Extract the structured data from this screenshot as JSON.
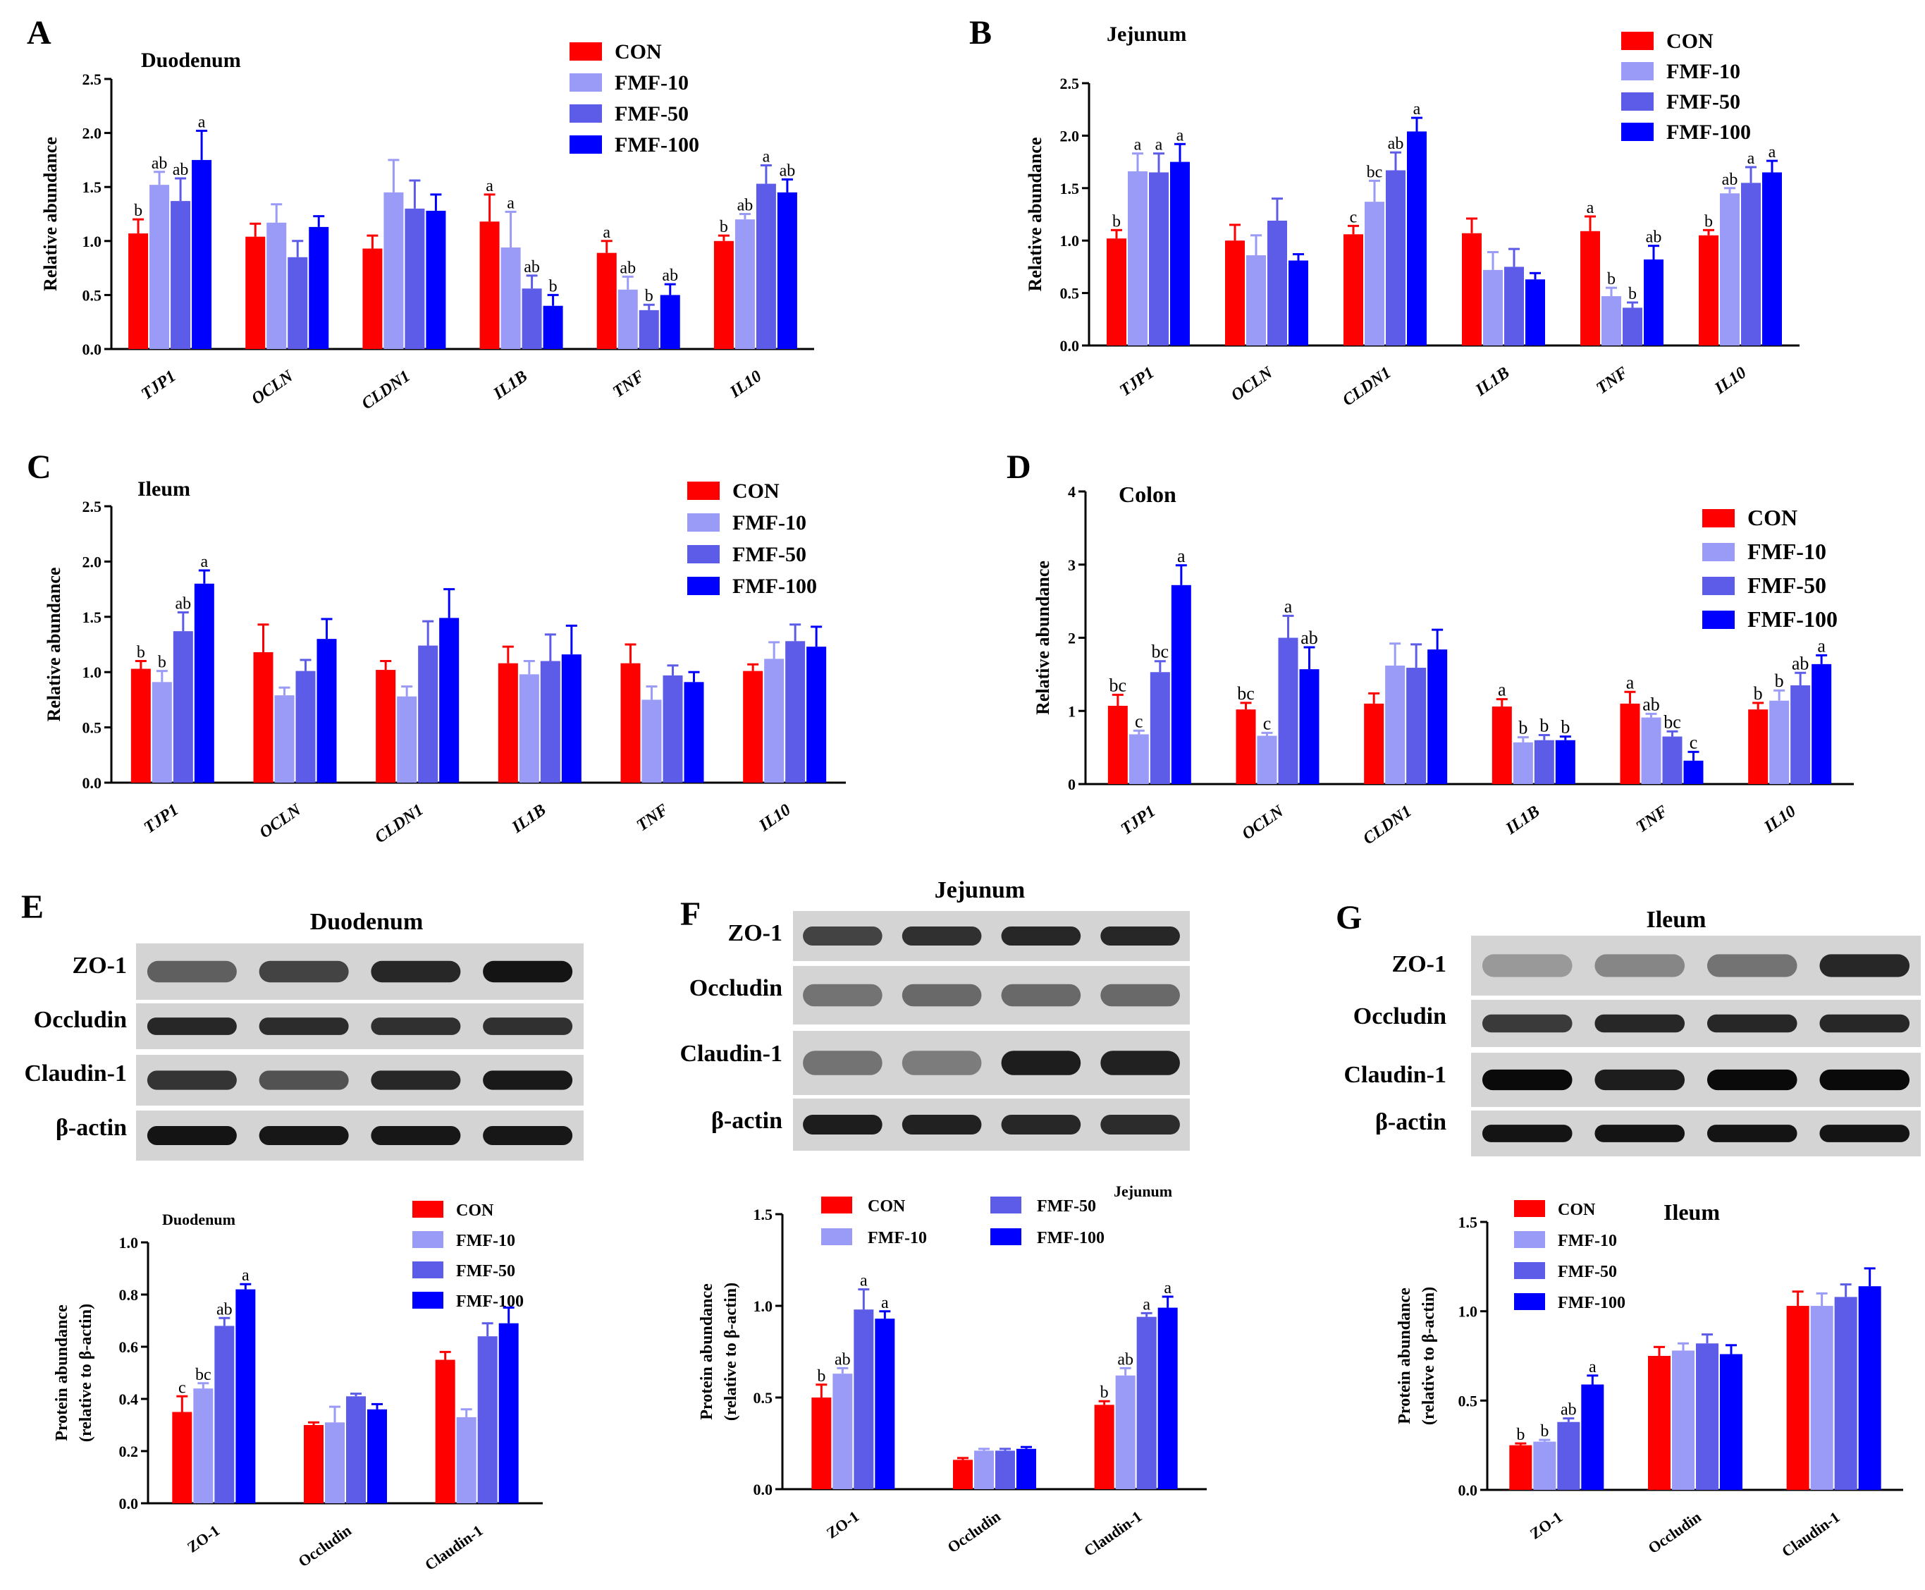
{
  "colors": {
    "CON": "#ff0000",
    "FMF-10": "#9a9af7",
    "FMF-50": "#5c5ce8",
    "FMF-100": "#0000ff"
  },
  "legend": [
    "CON",
    "FMF-10",
    "FMF-50",
    "FMF-100"
  ],
  "chart_data": [
    {
      "panel": "A",
      "title": "Duodenum",
      "type": "bar",
      "ylabel": "Relative abundance",
      "categories": [
        "TJP1",
        "OCLN",
        "CLDN1",
        "IL1B",
        "TNF",
        "IL10"
      ],
      "ylim": [
        0,
        2.5
      ],
      "ticks": [
        "0.0",
        "0.5",
        "1.0",
        "1.5",
        "2.0",
        "2.5"
      ],
      "legend_position": "top-right",
      "series": [
        {
          "name": "CON",
          "values": [
            1.07,
            1.04,
            0.93,
            1.18,
            0.89,
            1.0
          ],
          "errors": [
            0.13,
            0.12,
            0.12,
            0.25,
            0.11,
            0.05
          ],
          "letters": [
            "b",
            "",
            "",
            "a",
            "a",
            "b"
          ]
        },
        {
          "name": "FMF-10",
          "values": [
            1.52,
            1.17,
            1.45,
            0.94,
            0.55,
            1.2
          ],
          "errors": [
            0.12,
            0.17,
            0.3,
            0.33,
            0.12,
            0.05
          ],
          "letters": [
            "ab",
            "",
            "",
            "a",
            "ab",
            "ab"
          ]
        },
        {
          "name": "FMF-50",
          "values": [
            1.37,
            0.85,
            1.3,
            0.56,
            0.36,
            1.53
          ],
          "errors": [
            0.21,
            0.15,
            0.26,
            0.12,
            0.05,
            0.17
          ],
          "letters": [
            "ab",
            "",
            "",
            "ab",
            "b",
            "a"
          ]
        },
        {
          "name": "FMF-100",
          "values": [
            1.75,
            1.13,
            1.28,
            0.4,
            0.5,
            1.45
          ],
          "errors": [
            0.27,
            0.1,
            0.15,
            0.1,
            0.1,
            0.12
          ],
          "letters": [
            "a",
            "",
            "",
            "b",
            "ab",
            "ab"
          ]
        }
      ]
    },
    {
      "panel": "B",
      "title": "Jejunum",
      "type": "bar",
      "ylabel": "Relative abundance",
      "categories": [
        "TJP1",
        "OCLN",
        "CLDN1",
        "IL1B",
        "TNF",
        "IL10"
      ],
      "ylim": [
        0,
        2.5
      ],
      "ticks": [
        "0.0",
        "0.5",
        "1.0",
        "1.5",
        "2.0",
        "2.5"
      ],
      "legend_position": "top-right",
      "series": [
        {
          "name": "CON",
          "values": [
            1.02,
            1.0,
            1.06,
            1.07,
            1.09,
            1.05
          ],
          "errors": [
            0.08,
            0.15,
            0.08,
            0.14,
            0.14,
            0.05
          ],
          "letters": [
            "b",
            "",
            "c",
            "",
            "a",
            "b"
          ]
        },
        {
          "name": "FMF-10",
          "values": [
            1.66,
            0.86,
            1.37,
            0.72,
            0.47,
            1.45
          ],
          "errors": [
            0.17,
            0.19,
            0.2,
            0.17,
            0.08,
            0.05
          ],
          "letters": [
            "a",
            "",
            "bc",
            "",
            "b",
            "ab"
          ]
        },
        {
          "name": "FMF-50",
          "values": [
            1.65,
            1.19,
            1.67,
            0.75,
            0.36,
            1.55
          ],
          "errors": [
            0.18,
            0.21,
            0.17,
            0.17,
            0.05,
            0.15
          ],
          "letters": [
            "a",
            "",
            "ab",
            "",
            "b",
            "a"
          ]
        },
        {
          "name": "FMF-100",
          "values": [
            1.75,
            0.81,
            2.04,
            0.63,
            0.82,
            1.65
          ],
          "errors": [
            0.17,
            0.06,
            0.13,
            0.06,
            0.13,
            0.11
          ],
          "letters": [
            "a",
            "",
            "a",
            "",
            "ab",
            "a"
          ]
        }
      ]
    },
    {
      "panel": "C",
      "title": "Ileum",
      "type": "bar",
      "ylabel": "Relative abundance",
      "categories": [
        "TJP1",
        "OCLN",
        "CLDN1",
        "IL1B",
        "TNF",
        "IL10"
      ],
      "ylim": [
        0,
        2.5
      ],
      "ticks": [
        "0.0",
        "0.5",
        "1.0",
        "1.5",
        "2.0",
        "2.5"
      ],
      "legend_position": "top-right",
      "series": [
        {
          "name": "CON",
          "values": [
            1.03,
            1.18,
            1.02,
            1.08,
            1.08,
            1.01
          ],
          "errors": [
            0.07,
            0.25,
            0.08,
            0.15,
            0.17,
            0.06
          ],
          "letters": [
            "b",
            "",
            "",
            "",
            "",
            ""
          ]
        },
        {
          "name": "FMF-10",
          "values": [
            0.91,
            0.79,
            0.78,
            0.98,
            0.75,
            1.12
          ],
          "errors": [
            0.1,
            0.07,
            0.09,
            0.12,
            0.12,
            0.15
          ],
          "letters": [
            "b",
            "",
            "",
            "",
            "",
            ""
          ]
        },
        {
          "name": "FMF-50",
          "values": [
            1.37,
            1.01,
            1.24,
            1.1,
            0.97,
            1.28
          ],
          "errors": [
            0.17,
            0.1,
            0.22,
            0.24,
            0.09,
            0.15
          ],
          "letters": [
            "ab",
            "",
            "",
            "",
            "",
            ""
          ]
        },
        {
          "name": "FMF-100",
          "values": [
            1.8,
            1.3,
            1.49,
            1.16,
            0.91,
            1.23
          ],
          "errors": [
            0.12,
            0.18,
            0.26,
            0.26,
            0.09,
            0.18
          ],
          "letters": [
            "a",
            "",
            "",
            "",
            "",
            ""
          ]
        }
      ]
    },
    {
      "panel": "D",
      "title": "Colon",
      "type": "bar",
      "ylabel": "Relative abundance",
      "categories": [
        "TJP1",
        "OCLN",
        "CLDN1",
        "IL1B",
        "TNF",
        "IL10"
      ],
      "ylim": [
        0,
        4
      ],
      "ticks": [
        "0",
        "1",
        "2",
        "3",
        "4"
      ],
      "legend_position": "top-right",
      "series": [
        {
          "name": "CON",
          "values": [
            1.07,
            1.02,
            1.1,
            1.06,
            1.1,
            1.02
          ],
          "errors": [
            0.15,
            0.09,
            0.14,
            0.1,
            0.16,
            0.09
          ],
          "letters": [
            "bc",
            "bc",
            "",
            "a",
            "a",
            "b"
          ]
        },
        {
          "name": "FMF-10",
          "values": [
            0.68,
            0.66,
            1.62,
            0.57,
            0.91,
            1.14
          ],
          "errors": [
            0.05,
            0.04,
            0.3,
            0.07,
            0.05,
            0.14
          ],
          "letters": [
            "c",
            "c",
            "",
            "b",
            "ab",
            "b"
          ]
        },
        {
          "name": "FMF-50",
          "values": [
            1.53,
            2.0,
            1.59,
            0.6,
            0.65,
            1.35
          ],
          "errors": [
            0.15,
            0.3,
            0.32,
            0.07,
            0.07,
            0.17
          ],
          "letters": [
            "bc",
            "a",
            "",
            "b",
            "bc",
            "ab"
          ]
        },
        {
          "name": "FMF-100",
          "values": [
            2.72,
            1.57,
            1.84,
            0.6,
            0.32,
            1.64
          ],
          "errors": [
            0.27,
            0.3,
            0.27,
            0.05,
            0.12,
            0.12
          ],
          "letters": [
            "a",
            "ab",
            "",
            "b",
            "c",
            "a"
          ]
        }
      ]
    },
    {
      "panel": "E",
      "title": "Duodenum",
      "type": "bar",
      "ylabel": "Protein abundance (relative to β-actin)",
      "categories": [
        "ZO-1",
        "Occludin",
        "Claudin-1"
      ],
      "ylim": [
        0,
        1.0
      ],
      "ticks": [
        "0.0",
        "0.2",
        "0.4",
        "0.6",
        "0.8",
        "1.0"
      ],
      "legend_position": "top-right",
      "series": [
        {
          "name": "CON",
          "values": [
            0.35,
            0.3,
            0.55
          ],
          "errors": [
            0.06,
            0.01,
            0.03
          ],
          "letters": [
            "c",
            "",
            ""
          ]
        },
        {
          "name": "FMF-10",
          "values": [
            0.44,
            0.31,
            0.33
          ],
          "errors": [
            0.02,
            0.06,
            0.03
          ],
          "letters": [
            "bc",
            "",
            ""
          ]
        },
        {
          "name": "FMF-50",
          "values": [
            0.68,
            0.41,
            0.64
          ],
          "errors": [
            0.03,
            0.01,
            0.05
          ],
          "letters": [
            "ab",
            "",
            ""
          ]
        },
        {
          "name": "FMF-100",
          "values": [
            0.82,
            0.36,
            0.69
          ],
          "errors": [
            0.02,
            0.02,
            0.06
          ],
          "letters": [
            "a",
            "",
            ""
          ]
        }
      ]
    },
    {
      "panel": "F",
      "title": "Jejunum",
      "type": "bar",
      "ylabel": "Protein abundance (relative to β-actin)",
      "categories": [
        "ZO-1",
        "Occludin",
        "Claudin-1"
      ],
      "ylim": [
        0,
        1.5
      ],
      "ticks": [
        "0.0",
        "0.5",
        "1.0",
        "1.5"
      ],
      "legend_position": "top",
      "series": [
        {
          "name": "CON",
          "values": [
            0.5,
            0.16,
            0.46
          ],
          "errors": [
            0.07,
            0.01,
            0.02
          ],
          "letters": [
            "b",
            "",
            "b"
          ]
        },
        {
          "name": "FMF-10",
          "values": [
            0.63,
            0.21,
            0.62
          ],
          "errors": [
            0.03,
            0.01,
            0.04
          ],
          "letters": [
            "ab",
            "",
            "ab"
          ]
        },
        {
          "name": "FMF-50",
          "values": [
            0.98,
            0.21,
            0.94
          ],
          "errors": [
            0.11,
            0.01,
            0.02
          ],
          "letters": [
            "a",
            "",
            "a"
          ]
        },
        {
          "name": "FMF-100",
          "values": [
            0.93,
            0.22,
            0.99
          ],
          "errors": [
            0.04,
            0.01,
            0.06
          ],
          "letters": [
            "a",
            "",
            "a"
          ]
        }
      ]
    },
    {
      "panel": "G",
      "title": "Ileum",
      "type": "bar",
      "ylabel": "Protein abundance (relative to β-actin)",
      "categories": [
        "ZO-1",
        "Occludin",
        "Claudin-1"
      ],
      "ylim": [
        0,
        1.5
      ],
      "ticks": [
        "0.0",
        "0.5",
        "1.0",
        "1.5"
      ],
      "legend_position": "top-left",
      "series": [
        {
          "name": "CON",
          "values": [
            0.25,
            0.75,
            1.03
          ],
          "errors": [
            0.01,
            0.05,
            0.08
          ],
          "letters": [
            "b",
            "",
            ""
          ]
        },
        {
          "name": "FMF-10",
          "values": [
            0.27,
            0.78,
            1.03
          ],
          "errors": [
            0.01,
            0.04,
            0.07
          ],
          "letters": [
            "b",
            "",
            ""
          ]
        },
        {
          "name": "FMF-50",
          "values": [
            0.38,
            0.82,
            1.08
          ],
          "errors": [
            0.02,
            0.05,
            0.07
          ],
          "letters": [
            "ab",
            "",
            ""
          ]
        },
        {
          "name": "FMF-100",
          "values": [
            0.59,
            0.76,
            1.14
          ],
          "errors": [
            0.05,
            0.05,
            0.1
          ],
          "letters": [
            "a",
            "",
            ""
          ]
        }
      ]
    }
  ],
  "blots": [
    {
      "panel": "E",
      "title": "Duodenum",
      "rows": [
        {
          "label": "ZO-1",
          "intensity": [
            0.55,
            0.7,
            0.85,
            0.95
          ]
        },
        {
          "label": "Occludin",
          "intensity": [
            0.85,
            0.82,
            0.8,
            0.8
          ]
        },
        {
          "label": "Claudin-1",
          "intensity": [
            0.78,
            0.62,
            0.85,
            0.92
          ]
        },
        {
          "label": "β-actin",
          "intensity": [
            0.95,
            0.93,
            0.93,
            0.93
          ]
        }
      ]
    },
    {
      "panel": "F",
      "title": "Jejunum",
      "rows": [
        {
          "label": "ZO-1",
          "intensity": [
            0.7,
            0.8,
            0.85,
            0.85
          ]
        },
        {
          "label": "Occludin",
          "intensity": [
            0.45,
            0.5,
            0.5,
            0.5
          ]
        },
        {
          "label": "Claudin-1",
          "intensity": [
            0.45,
            0.4,
            0.9,
            0.88
          ]
        },
        {
          "label": "β-actin",
          "intensity": [
            0.9,
            0.88,
            0.85,
            0.82
          ]
        }
      ]
    },
    {
      "panel": "G",
      "title": "Ileum",
      "rows": [
        {
          "label": "ZO-1",
          "intensity": [
            0.25,
            0.35,
            0.45,
            0.85
          ]
        },
        {
          "label": "Occludin",
          "intensity": [
            0.75,
            0.85,
            0.85,
            0.85
          ]
        },
        {
          "label": "Claudin-1",
          "intensity": [
            1.0,
            0.9,
            1.0,
            1.0
          ]
        },
        {
          "label": "β-actin",
          "intensity": [
            0.95,
            0.95,
            0.95,
            0.95
          ]
        }
      ]
    }
  ]
}
